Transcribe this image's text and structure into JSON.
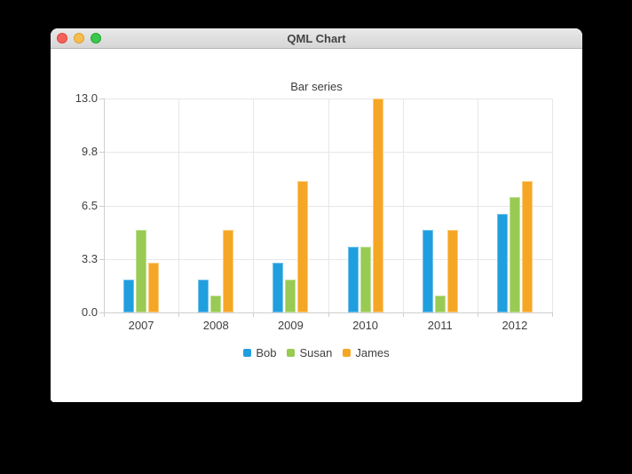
{
  "window": {
    "title": "QML Chart",
    "traffic_lights": [
      {
        "name": "close",
        "color": "#f4615b"
      },
      {
        "name": "minimize",
        "color": "#f6bd4f"
      },
      {
        "name": "zoom",
        "color": "#39c84d"
      }
    ]
  },
  "chart_data": {
    "type": "bar",
    "title": "Bar series",
    "categories": [
      "2007",
      "2008",
      "2009",
      "2010",
      "2011",
      "2012"
    ],
    "series": [
      {
        "name": "Bob",
        "color": "#209fdf",
        "border_color": "#74c1ea",
        "values": [
          2,
          2,
          3,
          4,
          5,
          6
        ]
      },
      {
        "name": "Susan",
        "color": "#99ca53",
        "border_color": "#c0df95",
        "values": [
          5,
          1,
          2,
          4,
          1,
          7
        ]
      },
      {
        "name": "James",
        "color": "#f6a625",
        "border_color": "#fbcd7f",
        "values": [
          3,
          5,
          8,
          13,
          5,
          8
        ]
      }
    ],
    "xlabel": "",
    "ylabel": "",
    "ylim": [
      0,
      13
    ],
    "yticks": [
      0,
      3.25,
      6.5,
      9.75,
      13
    ],
    "ytick_labels": [
      "0.0",
      "3.3",
      "6.5",
      "9.8",
      "13.0"
    ],
    "grid": true,
    "legend_position": "bottom",
    "grid_color": "#e7e7e7",
    "axis_color": "#cfcfcf",
    "text_color": "#404040",
    "background_color": "#ffffff"
  }
}
